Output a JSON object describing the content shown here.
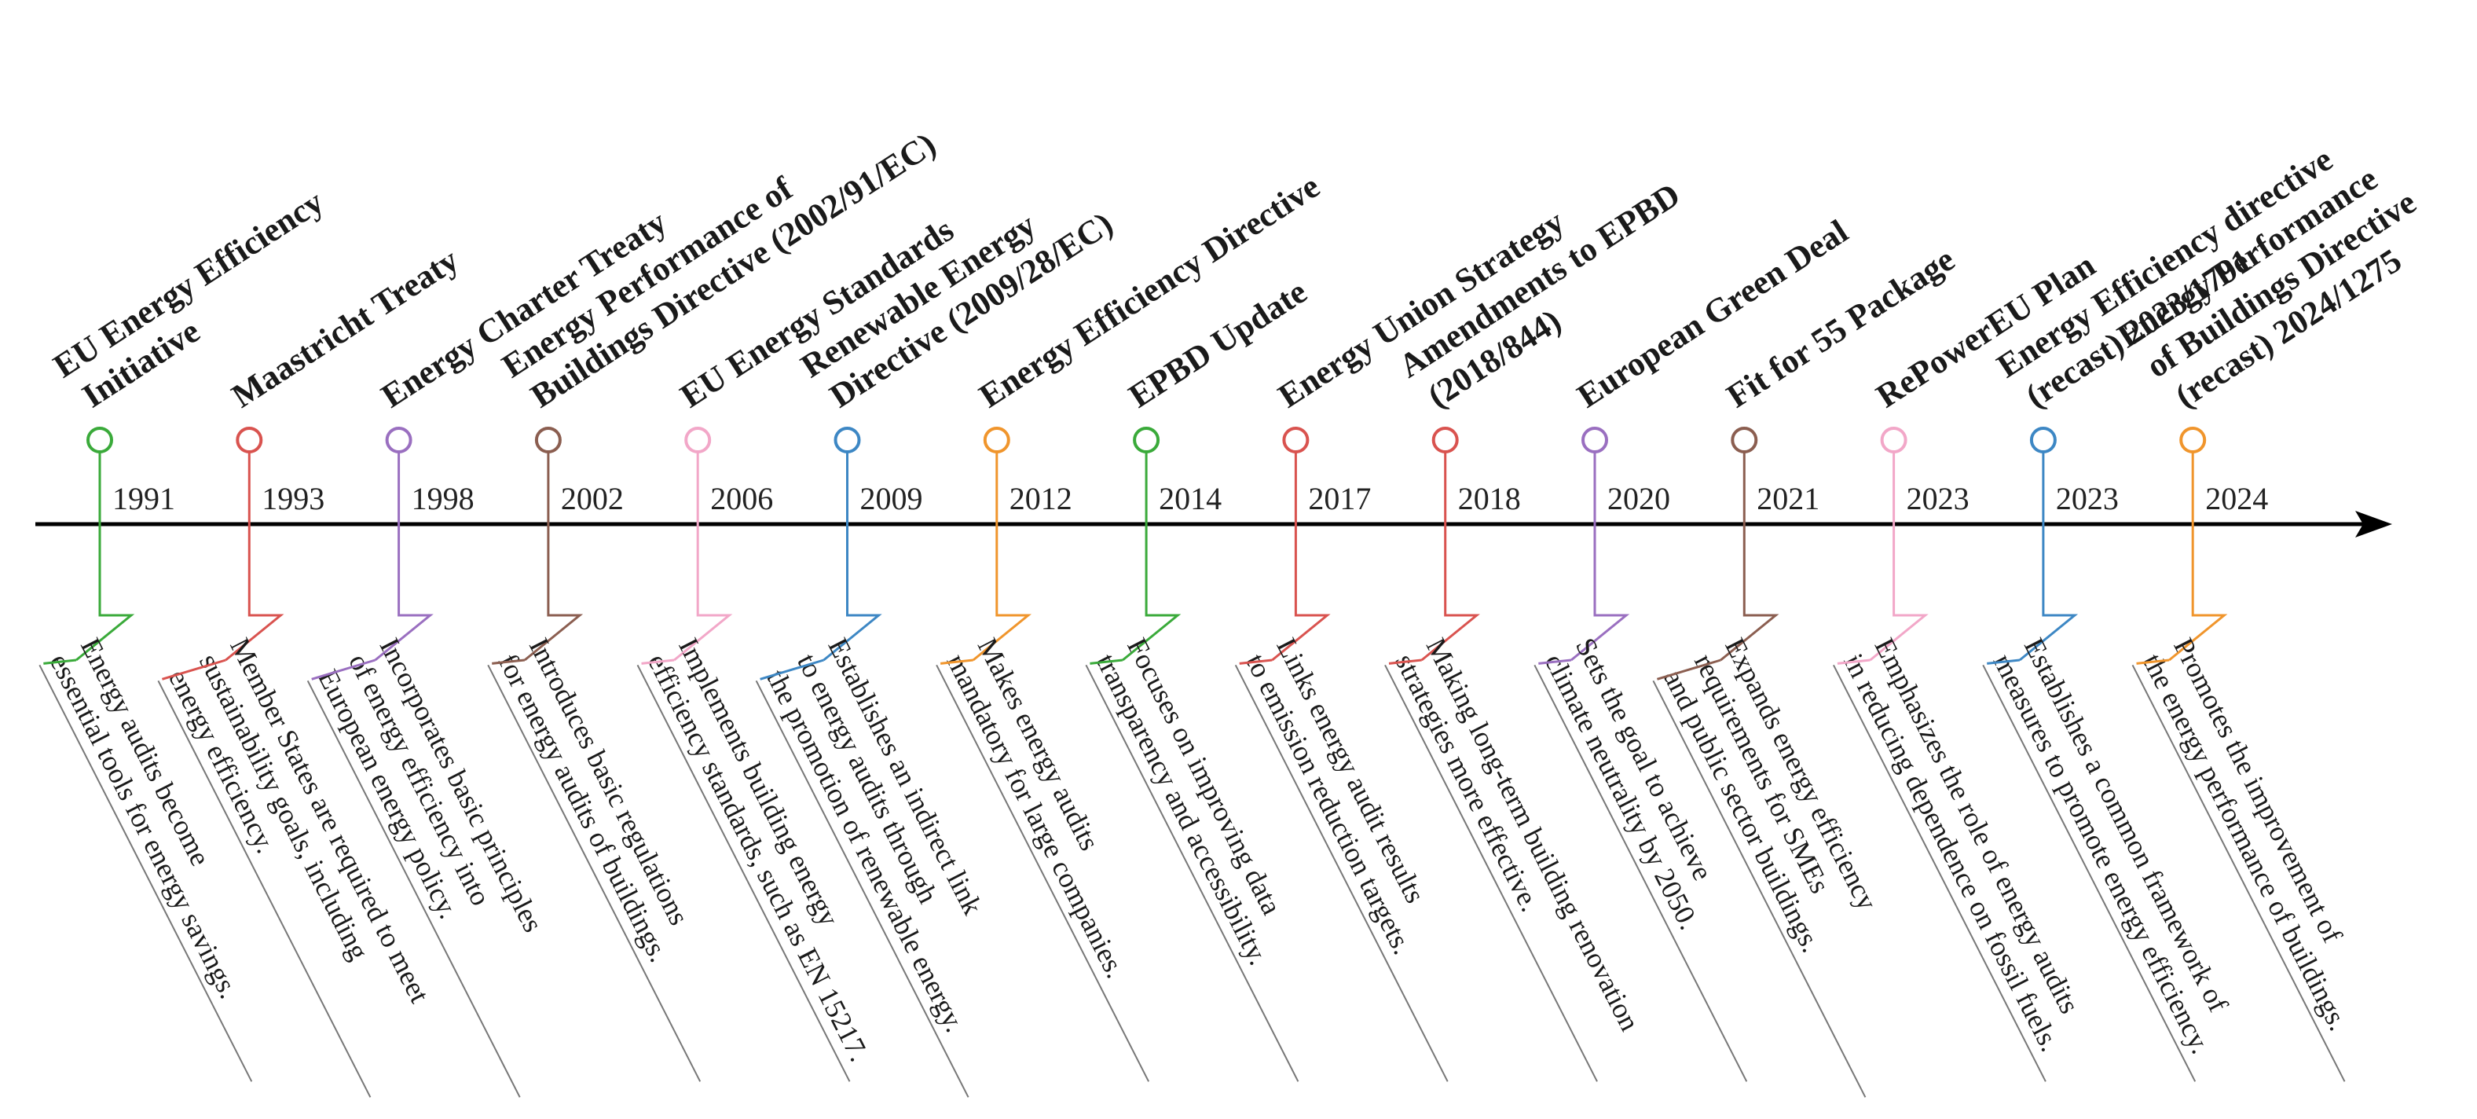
{
  "timeline": {
    "axis_color": "#000000",
    "events": [
      {
        "year": "1991",
        "color": "#3aaa3a",
        "title": [
          "EU Energy Efficiency",
          "Initiative"
        ],
        "description": [
          "Energy audits become",
          "essential tools for energy savings."
        ]
      },
      {
        "year": "1993",
        "color": "#d9534f",
        "title": [
          "Maastricht Treaty"
        ],
        "description": [
          "Member States are required to meet",
          "sustainability goals, including",
          "energy efficiency."
        ]
      },
      {
        "year": "1998",
        "color": "#9a6fc0",
        "title": [
          "Energy Charter Treaty"
        ],
        "description": [
          "Incorporates basic principles",
          "of energy efficiency into",
          "European energy policy."
        ]
      },
      {
        "year": "2002",
        "color": "#8b5e50",
        "title": [
          "Energy Performance of",
          "Buildings Directive (2002/91/EC)"
        ],
        "description": [
          "Introduces basic regulations",
          "for energy audits of buildings."
        ]
      },
      {
        "year": "2006",
        "color": "#f2a7c8",
        "title": [
          "EU Energy Standards"
        ],
        "description": [
          "Implements building energy",
          "efficiency standards, such as EN 15217."
        ]
      },
      {
        "year": "2009",
        "color": "#3d87c4",
        "title": [
          "Renewable Energy",
          "Directive (2009/28/EC)"
        ],
        "description": [
          "Establishes an indirect link",
          "to energy audits through",
          "the promotion of renewable energy."
        ]
      },
      {
        "year": "2012",
        "color": "#f0952c",
        "title": [
          "Energy Efficiency Directive"
        ],
        "description": [
          "Makes energy audits",
          "mandatory for large companies."
        ]
      },
      {
        "year": "2014",
        "color": "#3aaa3a",
        "title": [
          "EPBD Update"
        ],
        "description": [
          "Focuses on improving data",
          "transparency and accessibility."
        ]
      },
      {
        "year": "2017",
        "color": "#d9534f",
        "title": [
          "Energy Union Strategy"
        ],
        "description": [
          "Links energy audit results",
          "to emission reduction targets."
        ]
      },
      {
        "year": "2018",
        "color": "#d9534f",
        "title": [
          "Amendments to EPBD",
          "(2018/844)"
        ],
        "description": [
          "Making long-term building renovation",
          "strategies more effective."
        ]
      },
      {
        "year": "2020",
        "color": "#9a6fc0",
        "title": [
          "European Green Deal"
        ],
        "description": [
          "Sets the goal to achieve",
          "climate neutrality by 2050."
        ]
      },
      {
        "year": "2021",
        "color": "#8b5e50",
        "title": [
          "Fit for 55 Package"
        ],
        "description": [
          "Expands energy efficiency",
          "requirements for SMEs",
          "and public sector buildings."
        ]
      },
      {
        "year": "2023",
        "color": "#f2a7c8",
        "title": [
          "RePowerEU Plan"
        ],
        "description": [
          "Emphasizes the role of energy audits",
          "in reducing dependence on fossil fuels."
        ]
      },
      {
        "year": "2023",
        "color": "#3d87c4",
        "title": [
          "Energy Efficiency directive",
          "(recast)  2023/1791"
        ],
        "description": [
          "Establishes a common framework of",
          "measures to promote energy efficiency."
        ]
      },
      {
        "year": "2024",
        "color": "#f0952c",
        "title": [
          "Energy Performance",
          "of Buildings Directive",
          "(recast) 2024/1275"
        ],
        "description": [
          "Promotes the improvement of",
          "the energy performance of buildings."
        ]
      }
    ]
  }
}
